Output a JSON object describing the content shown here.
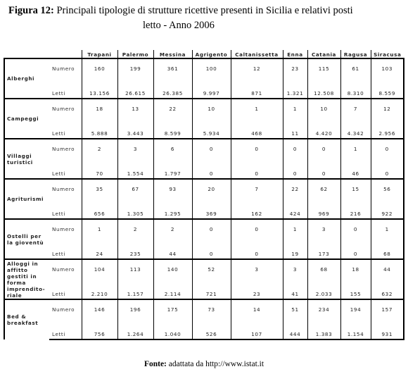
{
  "figure": {
    "label": "Figura 12:",
    "title_line1": "Principali tipologie di strutture ricettive presenti in Sicilia e relativi posti",
    "title_line2": "letto - Anno 2006"
  },
  "table": {
    "columns": [
      "Trapani",
      "Palermo",
      "Messina",
      "Agrigento",
      "Caltanissetta",
      "Enna",
      "Catania",
      "Ragusa",
      "Siracusa"
    ],
    "measures": {
      "number": "Numero",
      "beds": "Letti"
    },
    "rows": [
      {
        "category": "Alberghi",
        "numero": [
          "160",
          "199",
          "361",
          "100",
          "12",
          "23",
          "115",
          "61",
          "103"
        ],
        "letti": [
          "13.156",
          "26.615",
          "26.385",
          "9.997",
          "871",
          "1.321",
          "12.508",
          "8.310",
          "8.559"
        ]
      },
      {
        "category": "Campeggi",
        "numero": [
          "18",
          "13",
          "22",
          "10",
          "1",
          "1",
          "10",
          "7",
          "12"
        ],
        "letti": [
          "5.888",
          "3.443",
          "8.599",
          "5.934",
          "468",
          "11",
          "4.420",
          "4.342",
          "2.956"
        ]
      },
      {
        "category": "Villaggi turistici",
        "numero": [
          "2",
          "3",
          "6",
          "0",
          "0",
          "0",
          "0",
          "1",
          "0"
        ],
        "letti": [
          "70",
          "1.554",
          "1.797",
          "0",
          "0",
          "0",
          "0",
          "46",
          "0"
        ]
      },
      {
        "category": "Agriturismi",
        "numero": [
          "35",
          "67",
          "93",
          "20",
          "7",
          "22",
          "62",
          "15",
          "56"
        ],
        "letti": [
          "656",
          "1.305",
          "1.295",
          "369",
          "162",
          "424",
          "969",
          "216",
          "922"
        ]
      },
      {
        "category": "Ostelli per la gioventù",
        "numero": [
          "1",
          "2",
          "2",
          "0",
          "0",
          "1",
          "3",
          "0",
          "1"
        ],
        "letti": [
          "24",
          "235",
          "44",
          "0",
          "0",
          "19",
          "173",
          "0",
          "68"
        ]
      },
      {
        "category": "Alloggi in affitto gestiti in forma imprendito-riale",
        "numero": [
          "104",
          "113",
          "140",
          "52",
          "3",
          "3",
          "68",
          "18",
          "44"
        ],
        "letti": [
          "2.210",
          "1.157",
          "2.114",
          "721",
          "23",
          "41",
          "2.033",
          "155",
          "632"
        ]
      },
      {
        "category": "Bed & breakfast",
        "numero": [
          "146",
          "196",
          "175",
          "73",
          "14",
          "51",
          "234",
          "194",
          "157"
        ],
        "letti": [
          "756",
          "1.264",
          "1.040",
          "526",
          "107",
          "444",
          "1.383",
          "1.154",
          "931"
        ]
      }
    ]
  },
  "source": {
    "label": "Fonte:",
    "text": "adattata da http://www.istat.it"
  }
}
